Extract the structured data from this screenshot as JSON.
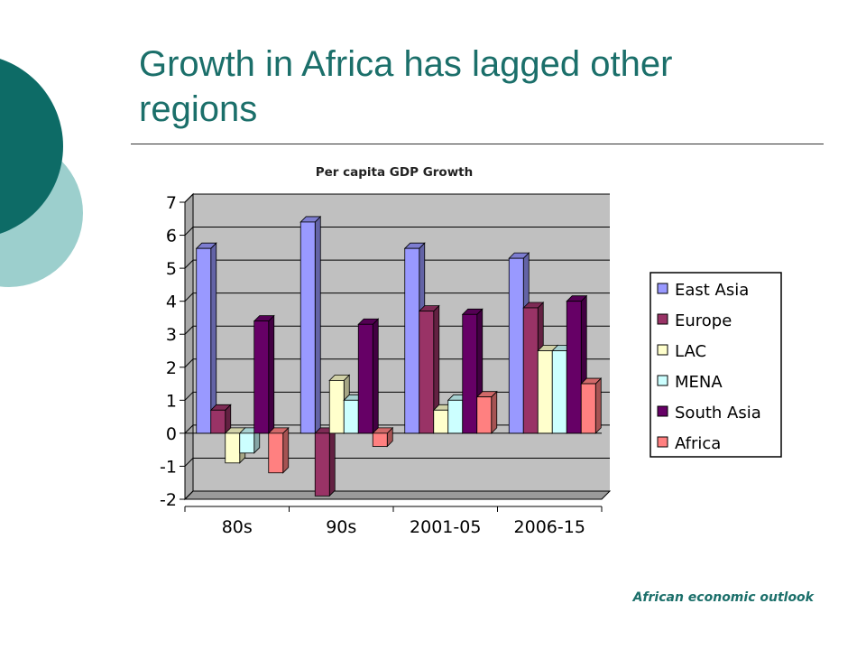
{
  "slide": {
    "title": "Growth in Africa has lagged other regions",
    "source": "African economic outlook"
  },
  "colors": {
    "accent_dark": "#0d6b66",
    "accent_light": "#9ccfcd",
    "title": "#1b6f6a",
    "plot_bg": "#c0c0c0"
  },
  "chart_data": {
    "type": "bar",
    "title": "Per capita GDP Growth",
    "categories": [
      "80s",
      "90s",
      "2001-05",
      "2006-15"
    ],
    "ylim": [
      -2,
      7
    ],
    "yticks": [
      7,
      6,
      5,
      4,
      3,
      2,
      1,
      0,
      -1,
      -2
    ],
    "grid": true,
    "legend_position": "right",
    "series": [
      {
        "name": "East Asia",
        "color": "#9999ff",
        "values": [
          5.6,
          6.4,
          5.6,
          5.3
        ]
      },
      {
        "name": "Europe",
        "color": "#993366",
        "values": [
          0.7,
          -1.9,
          3.7,
          3.8
        ]
      },
      {
        "name": "LAC",
        "color": "#ffffcc",
        "values": [
          -0.9,
          1.6,
          0.7,
          2.5
        ]
      },
      {
        "name": "MENA",
        "color": "#ccffff",
        "values": [
          -0.6,
          1.0,
          1.0,
          2.5
        ]
      },
      {
        "name": "South Asia",
        "color": "#660066",
        "values": [
          3.4,
          3.3,
          3.6,
          4.0
        ]
      },
      {
        "name": "Africa",
        "color": "#ff8080",
        "values": [
          -1.2,
          -0.4,
          1.1,
          1.5
        ]
      }
    ]
  }
}
